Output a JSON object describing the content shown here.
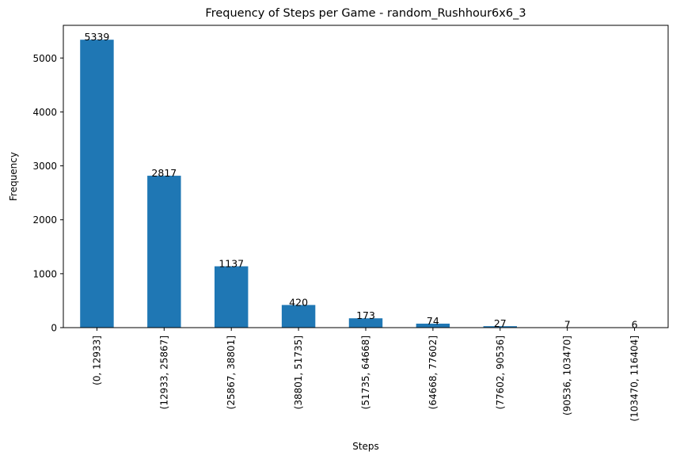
{
  "chart_data": {
    "type": "bar",
    "title": "Frequency of Steps per Game - random_Rushhour6x6_3",
    "xlabel": "Steps",
    "ylabel": "Frequency",
    "categories": [
      "(0, 12933]",
      "(12933, 25867]",
      "(25867, 38801]",
      "(38801, 51735]",
      "(51735, 64668]",
      "(64668, 77602]",
      "(77602, 90536]",
      "(90536, 103470]",
      "(103470, 116404]"
    ],
    "values": [
      5339,
      2817,
      1137,
      420,
      173,
      74,
      27,
      7,
      6
    ],
    "data_labels": [
      "5339",
      "2817",
      "1137",
      "420",
      "173",
      "74",
      "27",
      "7",
      "6"
    ],
    "ylim": [
      0,
      5606
    ],
    "yticks": [
      0,
      1000,
      2000,
      3000,
      4000,
      5000
    ],
    "ytick_labels": [
      "0",
      "1000",
      "2000",
      "3000",
      "4000",
      "5000"
    ],
    "bar_color": "#1f77b4",
    "grid": false,
    "legend": "none"
  }
}
